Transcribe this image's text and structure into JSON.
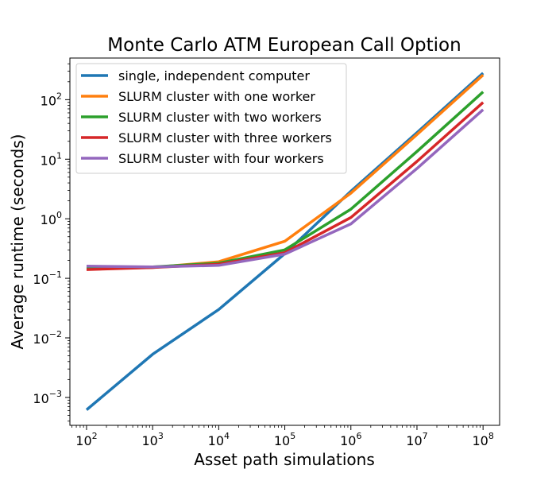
{
  "chart_data": {
    "type": "line",
    "title": "Monte Carlo ATM European Call Option",
    "xlabel": "Asset path simulations",
    "ylabel": "Average runtime (seconds)",
    "xscale": "log",
    "yscale": "log",
    "xlim": [
      56,
      178000000
    ],
    "ylim": [
      0.00034,
      500
    ],
    "grid": false,
    "legend_position": "top-left",
    "x_ticks": [
      {
        "base": "10",
        "exp": "2",
        "value": 100
      },
      {
        "base": "10",
        "exp": "3",
        "value": 1000
      },
      {
        "base": "10",
        "exp": "4",
        "value": 10000
      },
      {
        "base": "10",
        "exp": "5",
        "value": 100000
      },
      {
        "base": "10",
        "exp": "6",
        "value": 1000000
      },
      {
        "base": "10",
        "exp": "7",
        "value": 10000000
      },
      {
        "base": "10",
        "exp": "8",
        "value": 100000000
      }
    ],
    "y_ticks": [
      {
        "base": "10",
        "exp": "−3",
        "value": 0.001
      },
      {
        "base": "10",
        "exp": "−2",
        "value": 0.01
      },
      {
        "base": "10",
        "exp": "−1",
        "value": 0.1
      },
      {
        "base": "10",
        "exp": "0",
        "value": 1
      },
      {
        "base": "10",
        "exp": "1",
        "value": 10
      },
      {
        "base": "10",
        "exp": "2",
        "value": 100
      }
    ],
    "x": [
      100,
      1000,
      10000,
      100000,
      1000000,
      10000000,
      100000000
    ],
    "series": [
      {
        "name": "single, independent computer",
        "color": "#1f77b4",
        "values": [
          0.00062,
          0.0053,
          0.03,
          0.26,
          2.9,
          28,
          280
        ]
      },
      {
        "name": "SLURM cluster with one worker",
        "color": "#ff7f0e",
        "values": [
          0.145,
          0.152,
          0.19,
          0.42,
          2.7,
          26,
          260
        ]
      },
      {
        "name": "SLURM cluster with two workers",
        "color": "#2ca02c",
        "values": [
          0.148,
          0.155,
          0.18,
          0.3,
          1.45,
          13.5,
          135
        ]
      },
      {
        "name": "SLURM cluster with three workers",
        "color": "#d62728",
        "values": [
          0.14,
          0.152,
          0.172,
          0.27,
          1.05,
          9.2,
          90
        ]
      },
      {
        "name": "SLURM cluster with four workers",
        "color": "#9467bd",
        "values": [
          0.16,
          0.155,
          0.165,
          0.255,
          0.82,
          7,
          68
        ]
      }
    ]
  }
}
